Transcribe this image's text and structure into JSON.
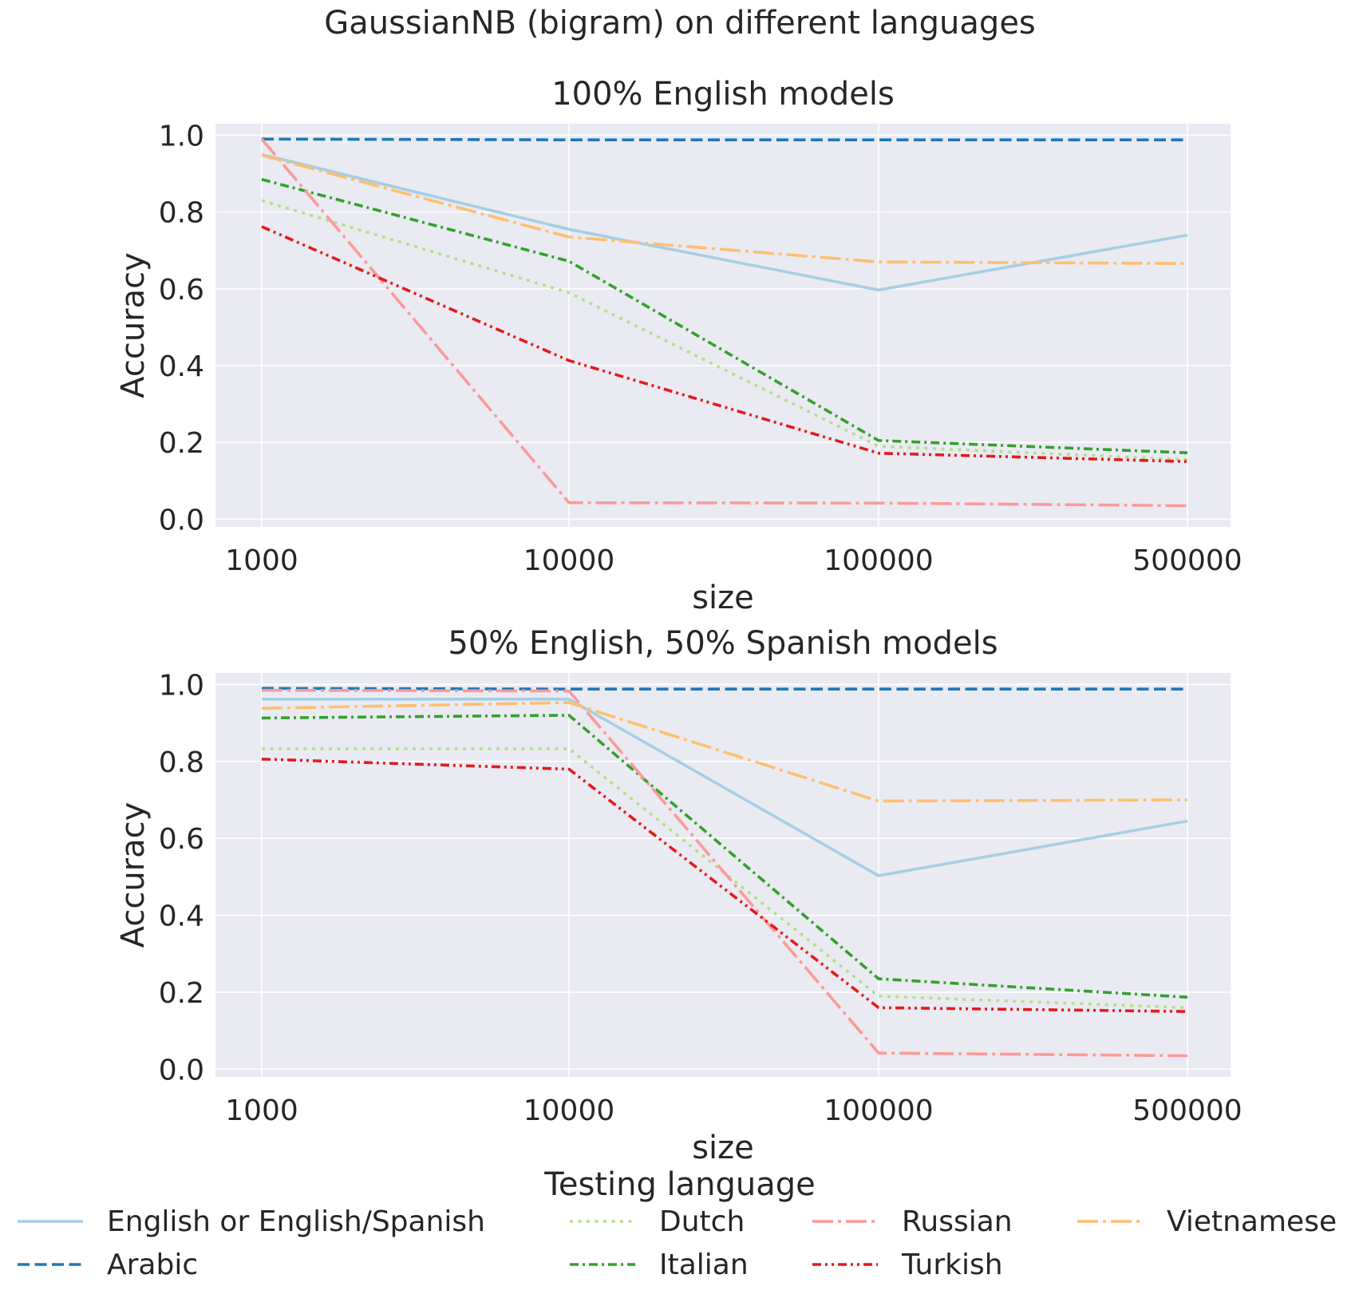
{
  "figure": {
    "suptitle": "GaussianNB (bigram) on different languages",
    "legend_title": "Testing language",
    "legend_placement": "bottom-center, 4 columns"
  },
  "chart_data": [
    {
      "type": "line",
      "title": "100% English models",
      "xlabel": "size",
      "ylabel": "Accuracy",
      "categories": [
        "1000",
        "10000",
        "100000",
        "500000"
      ],
      "ylim": [
        -0.02,
        1.03
      ],
      "yticks": [
        "0.0",
        "0.2",
        "0.4",
        "0.6",
        "0.8",
        "1.0"
      ],
      "grid": true,
      "series": [
        {
          "name": "English or English/Spanish",
          "color": "#a6cee3",
          "dash": "solid",
          "values": [
            0.95,
            0.755,
            0.597,
            0.74
          ]
        },
        {
          "name": "Arabic",
          "color": "#1f78b4",
          "dash": "dashed",
          "values": [
            0.99,
            0.988,
            0.988,
            0.988
          ]
        },
        {
          "name": "Dutch",
          "color": "#b2df8a",
          "dash": "dotted",
          "values": [
            0.83,
            0.59,
            0.19,
            0.155
          ]
        },
        {
          "name": "Italian",
          "color": "#33a02c",
          "dash": "dashdot",
          "values": [
            0.885,
            0.672,
            0.205,
            0.173
          ]
        },
        {
          "name": "Russian",
          "color": "#fb9a99",
          "dash": "longdashdot",
          "values": [
            0.99,
            0.043,
            0.042,
            0.035
          ]
        },
        {
          "name": "Turkish",
          "color": "#e31a1c",
          "dash": "dashdotdot",
          "values": [
            0.762,
            0.413,
            0.172,
            0.15
          ]
        },
        {
          "name": "Vietnamese",
          "color": "#fdbf6f",
          "dash": "longdashdot",
          "values": [
            0.948,
            0.735,
            0.67,
            0.666
          ]
        }
      ]
    },
    {
      "type": "line",
      "title": "50% English, 50% Spanish models",
      "xlabel": "size",
      "ylabel": "Accuracy",
      "categories": [
        "1000",
        "10000",
        "100000",
        "500000"
      ],
      "ylim": [
        -0.02,
        1.03
      ],
      "yticks": [
        "0.0",
        "0.2",
        "0.4",
        "0.6",
        "0.8",
        "1.0"
      ],
      "grid": true,
      "series": [
        {
          "name": "English or English/Spanish",
          "color": "#a6cee3",
          "dash": "solid",
          "values": [
            0.962,
            0.962,
            0.503,
            0.645
          ]
        },
        {
          "name": "Arabic",
          "color": "#1f78b4",
          "dash": "dashed",
          "values": [
            0.99,
            0.988,
            0.988,
            0.988
          ]
        },
        {
          "name": "Dutch",
          "color": "#b2df8a",
          "dash": "dotted",
          "values": [
            0.833,
            0.833,
            0.19,
            0.16
          ]
        },
        {
          "name": "Italian",
          "color": "#33a02c",
          "dash": "dashdot",
          "values": [
            0.913,
            0.92,
            0.235,
            0.187
          ]
        },
        {
          "name": "Russian",
          "color": "#fb9a99",
          "dash": "longdashdot",
          "values": [
            0.985,
            0.983,
            0.042,
            0.035
          ]
        },
        {
          "name": "Turkish",
          "color": "#e31a1c",
          "dash": "dashdotdot",
          "values": [
            0.806,
            0.78,
            0.16,
            0.15
          ]
        },
        {
          "name": "Vietnamese",
          "color": "#fdbf6f",
          "dash": "longdashdot",
          "values": [
            0.938,
            0.953,
            0.697,
            0.7
          ]
        }
      ]
    }
  ]
}
